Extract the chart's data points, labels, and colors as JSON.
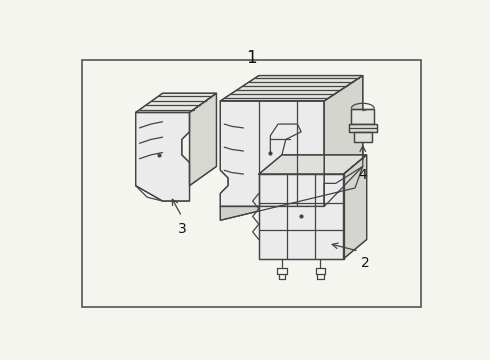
{
  "title": "1",
  "background_color": "#f5f5f0",
  "border_color": "#555555",
  "line_color": "#444444",
  "text_color": "#111111",
  "fig_width": 4.9,
  "fig_height": 3.6,
  "dpi": 100,
  "label_fontsize": 10,
  "title_fontsize": 12
}
